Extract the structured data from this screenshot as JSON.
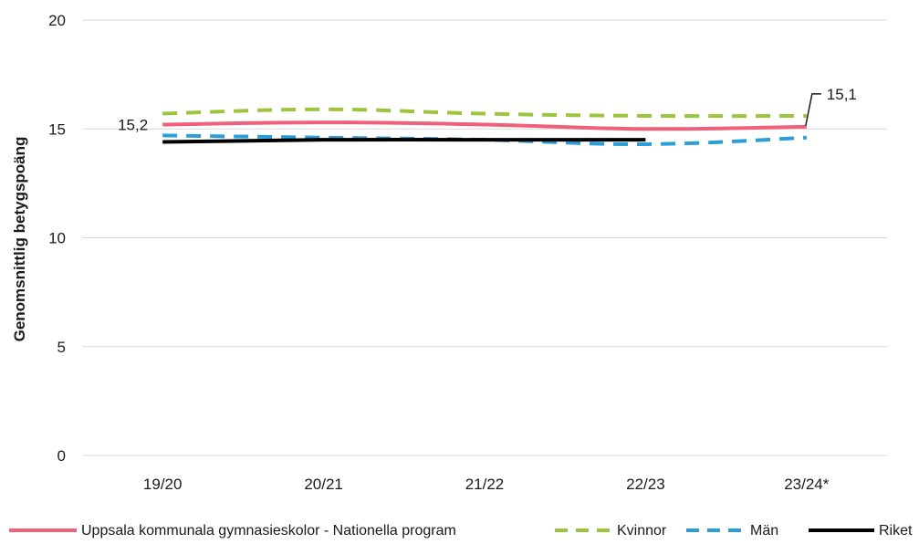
{
  "chart_data": {
    "type": "line",
    "categories": [
      "19/20",
      "20/21",
      "21/22",
      "22/23",
      "23/24*"
    ],
    "ylabel": "Genomsnittlig betygspoäng",
    "ylim": [
      0,
      20
    ],
    "yticks": [
      "0",
      "5",
      "10",
      "15",
      "20"
    ],
    "grid": true,
    "legend_position": "bottom",
    "series": [
      {
        "name": "Uppsala kommunala gymnasieskolor - Nationella program",
        "values": [
          15.2,
          15.3,
          15.2,
          15.0,
          15.1
        ],
        "color": "#f0607a",
        "style": "solid"
      },
      {
        "name": "Kvinnor",
        "values": [
          15.7,
          15.9,
          15.7,
          15.6,
          15.6
        ],
        "color": "#9bc53d",
        "style": "dashed"
      },
      {
        "name": "Män",
        "values": [
          14.7,
          14.6,
          14.5,
          14.3,
          14.6
        ],
        "color": "#2b9ed8",
        "style": "dashed"
      },
      {
        "name": "Riket",
        "values": [
          14.4,
          14.5,
          14.5,
          14.5,
          null
        ],
        "color": "#000000",
        "style": "solid"
      }
    ],
    "data_labels": [
      {
        "series": 0,
        "index": 0,
        "text": "15,2"
      },
      {
        "series": 0,
        "index": 4,
        "text": "15,1"
      }
    ]
  }
}
